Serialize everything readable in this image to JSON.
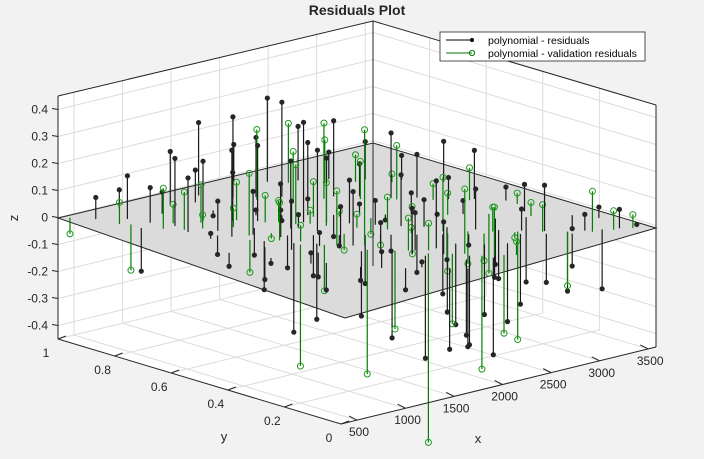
{
  "figure": {
    "background": "#f2f2f2",
    "plot_background": "#ffffff",
    "plane_color": "#d9d9d9",
    "grid_color": "#dcdcdc",
    "axis_color": "#262626"
  },
  "chart_data": {
    "type": "scatter",
    "subtype": "3d-stem",
    "title": "Residuals Plot",
    "xlabel": "x",
    "ylabel": "y",
    "zlabel": "z",
    "xlim": [
      335,
      3580
    ],
    "ylim": [
      0,
      1
    ],
    "zlim": [
      -0.45,
      0.45
    ],
    "xticks": [
      500,
      1000,
      1500,
      2000,
      2500,
      3000,
      3500
    ],
    "yticks": [
      0,
      0.2,
      0.4,
      0.6,
      0.8,
      1
    ],
    "zticks": [
      -0.4,
      -0.3,
      -0.2,
      -0.1,
      0,
      0.1,
      0.2,
      0.3,
      0.4
    ],
    "xtick_labels": [
      "500",
      "1000",
      "1500",
      "2000",
      "2500",
      "3000",
      "3500"
    ],
    "ytick_labels": [
      "0",
      "0.2",
      "0.4",
      "0.6",
      "0.8",
      "1"
    ],
    "ztick_labels": [
      "-0.4",
      "-0.3",
      "-0.2",
      "-0.1",
      "0",
      "0.1",
      "0.2",
      "0.3",
      "0.4"
    ],
    "grid": true,
    "reference_plane": {
      "z": 0,
      "color": "#d9d9d9"
    },
    "legend": {
      "position": "northeast",
      "entries": [
        {
          "label": "polynomial - residuals",
          "color": "#000000",
          "marker": "filled-circle"
        },
        {
          "label": "polynomial - validation residuals",
          "color": "#007f00",
          "marker": "open-circle"
        }
      ]
    },
    "series": [
      {
        "name": "polynomial - residuals",
        "color": "#262626",
        "marker": "filled-circle",
        "points": [
          [
            520,
            0.93,
            0.08
          ],
          [
            610,
            0.8,
            -0.16
          ],
          [
            700,
            0.88,
            0.16
          ],
          [
            760,
            0.82,
            0.13
          ],
          [
            800,
            0.7,
            0.2
          ],
          [
            840,
            0.76,
            0.25
          ],
          [
            900,
            0.63,
            -0.07
          ],
          [
            960,
            0.6,
            0.32
          ],
          [
            990,
            0.66,
            0.11
          ],
          [
            1060,
            0.52,
            -0.18
          ],
          [
            1120,
            0.58,
            0.16
          ],
          [
            1190,
            0.46,
            -0.33
          ],
          [
            1230,
            0.52,
            0.1
          ],
          [
            1280,
            0.4,
            0.05
          ],
          [
            1310,
            0.42,
            -0.28
          ],
          [
            1380,
            0.36,
            0.15
          ],
          [
            1420,
            0.3,
            -0.24
          ],
          [
            1480,
            0.35,
            0.2
          ],
          [
            1500,
            0.55,
            0.05
          ],
          [
            1560,
            0.28,
            0.1
          ],
          [
            1590,
            0.25,
            -0.32
          ],
          [
            1650,
            0.2,
            0.17
          ],
          [
            1700,
            0.17,
            -0.38
          ],
          [
            1740,
            0.22,
            0.14
          ],
          [
            1780,
            0.12,
            -0.2
          ],
          [
            1830,
            0.15,
            0.12
          ],
          [
            1860,
            0.08,
            -0.28
          ],
          [
            1900,
            0.2,
            0.25
          ],
          [
            640,
            0.5,
            -0.05
          ],
          [
            780,
            0.4,
            -0.02
          ],
          [
            900,
            0.3,
            0.04
          ],
          [
            1000,
            0.28,
            -0.1
          ],
          [
            1120,
            0.2,
            -0.05
          ],
          [
            1220,
            0.16,
            0.06
          ],
          [
            1350,
            0.12,
            -0.08
          ],
          [
            1460,
            0.1,
            0.02
          ],
          [
            1100,
            0.75,
            0.22
          ],
          [
            1260,
            0.7,
            0.18
          ],
          [
            1400,
            0.66,
            0.28
          ],
          [
            1520,
            0.62,
            0.14
          ],
          [
            1640,
            0.58,
            0.37
          ],
          [
            1760,
            0.54,
            0.24
          ],
          [
            1880,
            0.5,
            0.16
          ],
          [
            2000,
            0.45,
            0.09
          ],
          [
            2120,
            0.4,
            0.19
          ],
          [
            2240,
            0.36,
            0.1
          ],
          [
            2360,
            0.32,
            -0.12
          ],
          [
            2480,
            0.26,
            0.15
          ],
          [
            2600,
            0.22,
            -0.18
          ],
          [
            2720,
            0.18,
            0.08
          ],
          [
            2840,
            0.14,
            0.17
          ],
          [
            2960,
            0.1,
            -0.22
          ],
          [
            3080,
            0.08,
            0.06
          ],
          [
            3200,
            0.06,
            -0.22
          ],
          [
            3320,
            0.04,
            0.07
          ],
          [
            3440,
            0.02,
            0.01
          ],
          [
            1700,
            0.85,
            0.3
          ],
          [
            1850,
            0.82,
            0.22
          ],
          [
            2000,
            0.78,
            0.35
          ],
          [
            2150,
            0.74,
            0.2
          ],
          [
            2300,
            0.7,
            0.28
          ],
          [
            2450,
            0.66,
            0.12
          ],
          [
            2600,
            0.6,
            0.24
          ],
          [
            2750,
            0.56,
            0.16
          ],
          [
            2900,
            0.5,
            0.08
          ],
          [
            3050,
            0.46,
            0.18
          ],
          [
            3200,
            0.4,
            0.05
          ],
          [
            2000,
            0.95,
            0.14
          ],
          [
            2200,
            0.9,
            0.31
          ],
          [
            2400,
            0.86,
            0.2
          ],
          [
            2600,
            0.82,
            0.1
          ],
          [
            2800,
            0.76,
            0.14
          ],
          [
            3000,
            0.7,
            0.09
          ],
          [
            3200,
            0.62,
            0.15
          ],
          [
            1300,
            0.52,
            -0.12
          ],
          [
            1450,
            0.48,
            -0.15
          ],
          [
            1600,
            0.44,
            -0.04
          ],
          [
            1750,
            0.4,
            -0.18
          ],
          [
            1900,
            0.36,
            -0.06
          ],
          [
            2050,
            0.32,
            -0.14
          ],
          [
            2200,
            0.28,
            -0.22
          ],
          [
            2350,
            0.24,
            -0.04
          ],
          [
            2500,
            0.2,
            -0.16
          ],
          [
            2650,
            0.16,
            -0.26
          ],
          [
            2800,
            0.12,
            -0.18
          ],
          [
            2950,
            0.08,
            -0.12
          ],
          [
            1500,
            0.7,
            0.02
          ],
          [
            1650,
            0.66,
            -0.02
          ],
          [
            1800,
            0.62,
            0.06
          ],
          [
            1950,
            0.58,
            -0.08
          ],
          [
            2100,
            0.54,
            0.04
          ],
          [
            2250,
            0.5,
            -0.02
          ],
          [
            2400,
            0.46,
            0.08
          ],
          [
            2550,
            0.42,
            0.0
          ],
          [
            2700,
            0.38,
            0.05
          ],
          [
            800,
            0.62,
            0.02
          ],
          [
            950,
            0.48,
            -0.12
          ],
          [
            1050,
            0.42,
            0.18
          ],
          [
            1150,
            0.36,
            -0.09
          ],
          [
            2100,
            0.2,
            -0.3
          ],
          [
            2250,
            0.15,
            -0.26
          ],
          [
            2400,
            0.12,
            -0.29
          ],
          [
            1950,
            0.1,
            -0.33
          ],
          [
            2050,
            0.05,
            -0.36
          ],
          [
            1600,
            0.05,
            -0.3
          ],
          [
            1700,
            0.02,
            -0.29
          ],
          [
            2800,
            0.3,
            -0.17
          ],
          [
            3000,
            0.26,
            -0.24
          ],
          [
            3100,
            0.3,
            0.1
          ],
          [
            3300,
            0.2,
            -0.05
          ],
          [
            3400,
            0.14,
            0.04
          ],
          [
            1200,
            0.9,
            0.2
          ],
          [
            1400,
            0.88,
            0.12
          ],
          [
            1550,
            0.92,
            0.27
          ],
          [
            1000,
            0.86,
            0.08
          ],
          [
            850,
            0.96,
            0.07
          ],
          [
            1350,
            0.8,
            -0.02
          ],
          [
            1250,
            0.62,
            -0.1
          ],
          [
            1450,
            0.56,
            0.25
          ],
          [
            1550,
            0.5,
            0.3
          ]
        ]
      },
      {
        "name": "polynomial - validation residuals",
        "color": "#007f00",
        "marker": "open-circle",
        "points": [
          [
            400,
            0.98,
            -0.06
          ],
          [
            560,
            0.86,
            0.08
          ],
          [
            620,
            0.84,
            -0.17
          ],
          [
            720,
            0.76,
            0.15
          ],
          [
            820,
            0.72,
            0.14
          ],
          [
            880,
            0.78,
            0.07
          ],
          [
            950,
            0.7,
            0.05
          ],
          [
            1000,
            0.55,
            -0.12
          ],
          [
            1080,
            0.58,
            0.23
          ],
          [
            1160,
            0.5,
            0.14
          ],
          [
            1200,
            0.44,
            -0.45
          ],
          [
            1260,
            0.46,
            0.06
          ],
          [
            1330,
            0.4,
            -0.17
          ],
          [
            1400,
            0.38,
            0.2
          ],
          [
            1480,
            0.3,
            -0.46
          ],
          [
            1540,
            0.33,
            0.43
          ],
          [
            1620,
            0.25,
            -0.29
          ],
          [
            1700,
            0.23,
            0.12
          ],
          [
            1760,
            0.18,
            -0.7
          ],
          [
            1820,
            0.2,
            0.1
          ],
          [
            1890,
            0.14,
            -0.26
          ],
          [
            1960,
            0.12,
            0.24
          ],
          [
            2020,
            0.08,
            -0.42
          ],
          [
            2090,
            0.06,
            0.18
          ],
          [
            2160,
            0.05,
            -0.29
          ],
          [
            2230,
            0.03,
            0.05
          ],
          [
            1300,
            0.7,
            0.14
          ],
          [
            1420,
            0.64,
            0.1
          ],
          [
            1560,
            0.58,
            0.22
          ],
          [
            1700,
            0.52,
            0.16
          ],
          [
            1840,
            0.46,
            0.05
          ],
          [
            1980,
            0.4,
            0.12
          ],
          [
            2120,
            0.36,
            -0.09
          ],
          [
            2260,
            0.3,
            0.2
          ],
          [
            2400,
            0.26,
            -0.12
          ],
          [
            2540,
            0.22,
            0.09
          ],
          [
            2680,
            0.18,
            -0.4
          ],
          [
            2820,
            0.14,
            0.1
          ],
          [
            2960,
            0.1,
            -0.2
          ],
          [
            3100,
            0.06,
            0.15
          ],
          [
            3260,
            0.04,
            0.07
          ],
          [
            3400,
            0.02,
            0.05
          ],
          [
            1800,
            0.8,
            0.26
          ],
          [
            2000,
            0.74,
            0.18
          ],
          [
            2200,
            0.7,
            0.28
          ],
          [
            2400,
            0.64,
            0.14
          ],
          [
            2600,
            0.58,
            0.2
          ],
          [
            2800,
            0.52,
            0.06
          ],
          [
            3000,
            0.46,
            0.12
          ],
          [
            3200,
            0.36,
            0.04
          ],
          [
            2300,
            0.86,
            0.22
          ],
          [
            2500,
            0.8,
            0.16
          ],
          [
            2700,
            0.76,
            0.1
          ],
          [
            2900,
            0.7,
            0.03
          ],
          [
            1650,
            0.44,
            -0.06
          ],
          [
            1850,
            0.38,
            -0.04
          ],
          [
            2050,
            0.34,
            0.02
          ],
          [
            2250,
            0.28,
            -0.14
          ],
          [
            2450,
            0.22,
            -0.1
          ],
          [
            2650,
            0.18,
            -0.02
          ],
          [
            1500,
            0.62,
            0.08
          ],
          [
            1650,
            0.56,
            0.05
          ],
          [
            1800,
            0.6,
            0.13
          ],
          [
            1950,
            0.56,
            0.02
          ],
          [
            2100,
            0.5,
            -0.06
          ],
          [
            2350,
            0.44,
            0.04
          ],
          [
            2600,
            0.4,
            0.08
          ],
          [
            2850,
            0.34,
            -0.22
          ],
          [
            3050,
            0.26,
            0.05
          ],
          [
            1150,
            0.66,
            0.07
          ],
          [
            1050,
            0.74,
            0.14
          ],
          [
            1250,
            0.56,
            -0.02
          ]
        ]
      }
    ]
  }
}
